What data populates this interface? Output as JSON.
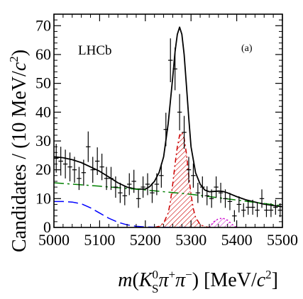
{
  "chart_data": {
    "type": "histogram-fit",
    "experiment_label": "LHCb",
    "panel_label": "(a)",
    "xlabel": "m(K_S^0 π+π−) [MeV/c²]",
    "ylabel": "Candidates / (10 MeV/c²)",
    "xlim": [
      5000,
      5500
    ],
    "ylim": [
      0,
      74
    ],
    "x_ticks": [
      5000,
      5100,
      5200,
      5300,
      5400,
      5500
    ],
    "y_ticks": [
      0,
      10,
      20,
      30,
      40,
      50,
      60,
      70
    ],
    "grid": false,
    "data_points": {
      "x": [
        5005,
        5015,
        5025,
        5035,
        5045,
        5055,
        5065,
        5075,
        5085,
        5095,
        5105,
        5115,
        5125,
        5135,
        5145,
        5155,
        5165,
        5175,
        5185,
        5195,
        5205,
        5215,
        5225,
        5235,
        5245,
        5255,
        5265,
        5275,
        5285,
        5295,
        5305,
        5315,
        5325,
        5335,
        5345,
        5355,
        5365,
        5375,
        5385,
        5395,
        5405,
        5415,
        5425,
        5435,
        5445,
        5455,
        5465,
        5475,
        5485,
        5495
      ],
      "y": [
        24,
        23,
        22,
        21,
        20,
        17,
        19,
        28,
        20,
        23,
        21,
        17,
        17,
        14,
        12,
        11,
        15,
        16,
        10,
        14,
        15,
        12,
        15,
        18,
        34,
        58,
        55,
        40,
        33,
        20,
        18,
        12,
        14,
        11,
        10,
        14,
        12,
        10,
        9,
        4,
        8,
        6,
        7,
        7,
        6,
        10,
        6,
        6,
        7,
        6
      ],
      "yerr": [
        5,
        5,
        5,
        5,
        4.5,
        4,
        4.5,
        5.3,
        4.5,
        4.8,
        4.6,
        4,
        4,
        3.7,
        3.5,
        3.3,
        3.8,
        4,
        3.2,
        3.7,
        3.8,
        3.5,
        3.8,
        4.2,
        5.8,
        7.6,
        7.4,
        6.3,
        5.7,
        4.5,
        4.2,
        3.5,
        3.7,
        3.3,
        3.2,
        3.7,
        3.5,
        3.2,
        3,
        2,
        2.8,
        2.4,
        2.6,
        2.6,
        2.4,
        3.2,
        2.4,
        2.4,
        2.6,
        2.4
      ]
    },
    "series": [
      {
        "style": "solid",
        "color": "#000000",
        "x": [
          5000,
          5020,
          5040,
          5060,
          5080,
          5100,
          5120,
          5140,
          5160,
          5180,
          5200,
          5210,
          5220,
          5230,
          5240,
          5250,
          5260,
          5265,
          5270,
          5275,
          5280,
          5285,
          5290,
          5295,
          5300,
          5310,
          5320,
          5330,
          5340,
          5350,
          5360,
          5370,
          5380,
          5400,
          5420,
          5440,
          5460,
          5480,
          5500
        ],
        "y": [
          24.5,
          24.2,
          23.5,
          22.5,
          21,
          19.5,
          17.5,
          15.5,
          14,
          13.3,
          13.3,
          14.2,
          16,
          19,
          24.5,
          36,
          52,
          61,
          67,
          69.5,
          67,
          60,
          49,
          38,
          28,
          19,
          15,
          13,
          12.4,
          12.5,
          12.6,
          12.5,
          12,
          10.7,
          9.6,
          8.8,
          8.1,
          7.6,
          7.2
        ]
      },
      {
        "style": "dash-dot",
        "color": "#008000",
        "x": [
          5000,
          5100,
          5200,
          5300,
          5400,
          5500
        ],
        "y": [
          15.5,
          14.3,
          13,
          11.5,
          9.5,
          7.5
        ]
      },
      {
        "style": "dashed",
        "color": "#0000ff",
        "x": [
          5000,
          5020,
          5040,
          5060,
          5080,
          5100,
          5120,
          5140,
          5160,
          5180,
          5200,
          5220,
          5240,
          5260,
          5280,
          5300
        ],
        "y": [
          9,
          9,
          8.8,
          8.2,
          6.8,
          5,
          3.2,
          1.8,
          0.9,
          0.4,
          0.2,
          0.1,
          0.05,
          0,
          0,
          0
        ]
      },
      {
        "style": "dash-dot-hatched",
        "color": "#cc0000",
        "fill": "hatched",
        "x": [
          5220,
          5230,
          5240,
          5250,
          5255,
          5260,
          5265,
          5270,
          5275,
          5280,
          5285,
          5290,
          5295,
          5300,
          5305,
          5310,
          5320,
          5330,
          5340
        ],
        "y": [
          0,
          0.4,
          1.5,
          5,
          9,
          15,
          22,
          28,
          32,
          33,
          31,
          25.5,
          18,
          11.5,
          6.5,
          3.5,
          1,
          0.3,
          0
        ]
      },
      {
        "style": "dotted-hatched",
        "color": "#cc00cc",
        "fill": "hatched",
        "x": [
          5340,
          5350,
          5360,
          5370,
          5380,
          5390,
          5400
        ],
        "y": [
          0,
          2,
          3,
          3.2,
          2.5,
          1,
          0
        ]
      }
    ]
  }
}
